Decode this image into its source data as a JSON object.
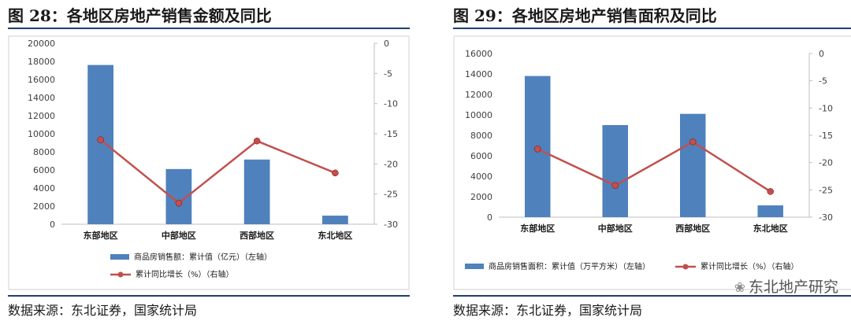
{
  "figures": [
    {
      "title": "图 28：各地区房地产销售金额及同比",
      "source": "数据来源：东北证券，国家统计局"
    },
    {
      "title": "图 29：各地区房地产销售面积及同比",
      "source": "数据来源：东北证券，国家统计局"
    }
  ],
  "watermark": {
    "text": "东北地产研究",
    "icon": "wechat-icon"
  },
  "colors": {
    "bar": "#4f81bd",
    "line": "#c0504d",
    "rule": "#1f3f73"
  },
  "chart_data": [
    {
      "type": "bar",
      "categories": [
        "东部地区",
        "中部地区",
        "西部地区",
        "东北地区"
      ],
      "series": [
        {
          "name": "商品房销售额：累计值（亿元）（左轴）",
          "type": "bar",
          "axis": "left",
          "values": [
            17600,
            6100,
            7150,
            950
          ]
        },
        {
          "name": "累计同比增长（%）（右轴）",
          "type": "line",
          "axis": "right",
          "values": [
            -16.0,
            -26.5,
            -16.2,
            -21.5
          ]
        }
      ],
      "y_left": {
        "min": 0,
        "max": 20000,
        "ticks": [
          "0",
          "2000",
          "4000",
          "6000",
          "8000",
          "10000",
          "12000",
          "14000",
          "16000",
          "18000",
          "20000"
        ]
      },
      "y_right": {
        "min": -30,
        "max": 0,
        "ticks": [
          "0",
          "-5",
          "-10",
          "-15",
          "-20",
          "-25",
          "-30"
        ]
      },
      "grid": false,
      "legend": "bottom"
    },
    {
      "type": "bar",
      "categories": [
        "东部地区",
        "中部地区",
        "西部地区",
        "东北地区"
      ],
      "series": [
        {
          "name": "商品房销售面积：累计值（万平方米）（左轴）",
          "type": "bar",
          "axis": "left",
          "values": [
            13800,
            9000,
            10100,
            1150
          ]
        },
        {
          "name": "累计同比增长（%）（右轴）",
          "type": "line",
          "axis": "right",
          "values": [
            -17.5,
            -24.2,
            -16.2,
            -25.3
          ]
        }
      ],
      "y_left": {
        "min": 0,
        "max": 16000,
        "ticks": [
          "0",
          "2000",
          "4000",
          "6000",
          "8000",
          "10000",
          "12000",
          "14000",
          "16000"
        ]
      },
      "y_right": {
        "min": -30,
        "max": 0,
        "ticks": [
          "0",
          "-5",
          "-10",
          "-15",
          "-20",
          "-25",
          "-30"
        ]
      },
      "grid": false,
      "legend": "bottom"
    }
  ]
}
